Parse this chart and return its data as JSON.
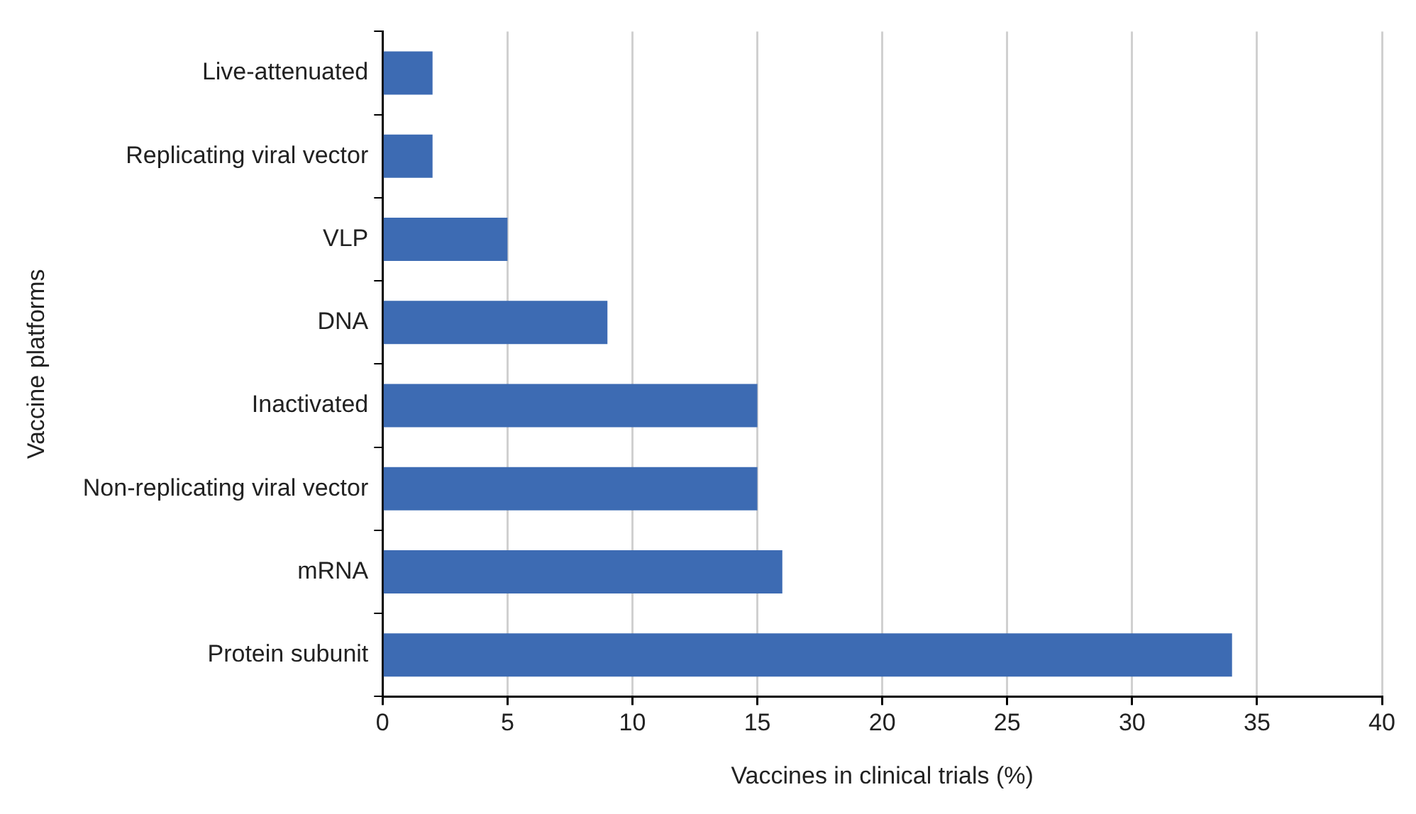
{
  "chart_data": {
    "type": "bar",
    "orientation": "horizontal",
    "categories": [
      "Live-attenuated",
      "Replicating viral vector",
      "VLP",
      "DNA",
      "Inactivated",
      "Non-replicating viral vector",
      "mRNA",
      "Protein subunit"
    ],
    "values": [
      2,
      2,
      5,
      9,
      15,
      15,
      16,
      34
    ],
    "color": "#3d6bb3",
    "xlabel": "Vaccines in clinical trials (%)",
    "ylabel": "Vaccine platforms",
    "xlim": [
      0,
      40
    ],
    "xticks": [
      0,
      5,
      10,
      15,
      20,
      25,
      30,
      35,
      40
    ],
    "grid": "x",
    "legend": false
  }
}
